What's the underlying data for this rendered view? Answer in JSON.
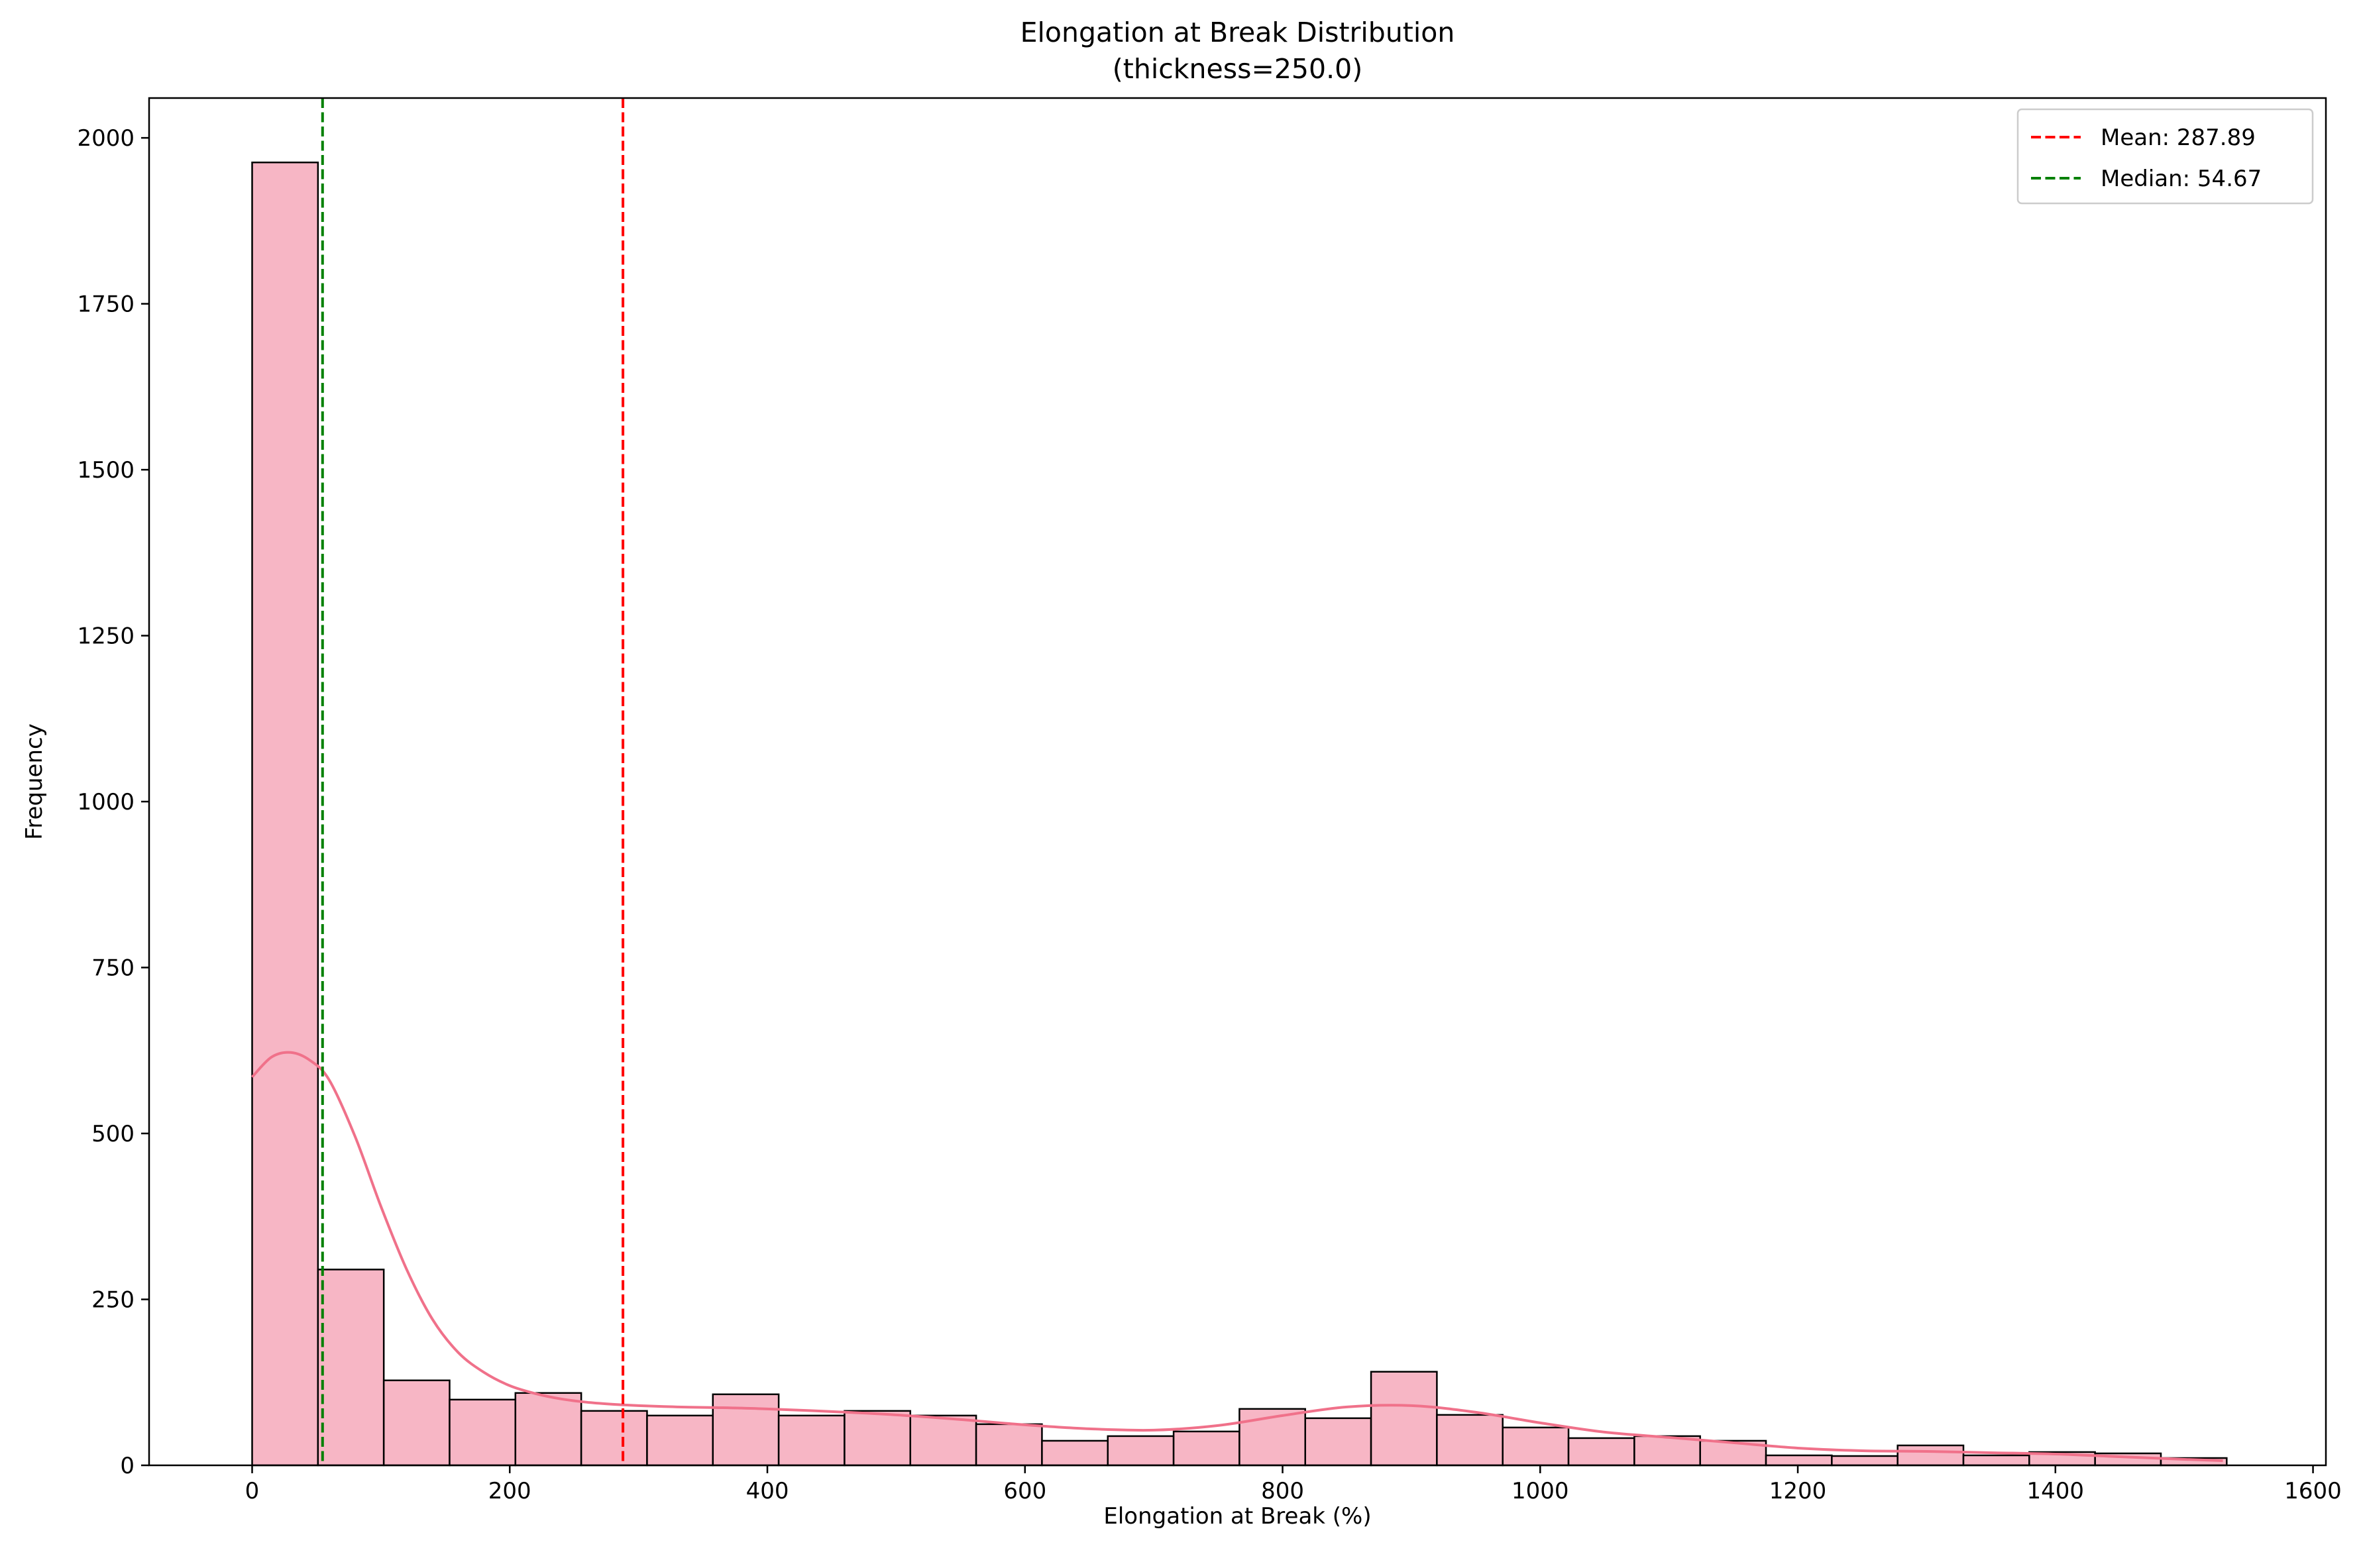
{
  "chart_data": {
    "type": "histogram",
    "title": "Elongation at Break Distribution",
    "subtitle": "(thickness=250.0)",
    "xlabel": "Elongation at Break (%)",
    "ylabel": "Frequency",
    "xlim": [
      -80,
      1610
    ],
    "ylim": [
      0,
      2060
    ],
    "xticks": [
      0,
      200,
      400,
      600,
      800,
      1000,
      1200,
      1400,
      1600
    ],
    "yticks": [
      0,
      250,
      500,
      750,
      1000,
      1250,
      1500,
      1750,
      2000
    ],
    "grid": false,
    "legend_position": "top-right",
    "bin_width": 51.1,
    "bins": [
      {
        "x0": 0.0,
        "count": 1963
      },
      {
        "x0": 51.1,
        "count": 295
      },
      {
        "x0": 102.2,
        "count": 128
      },
      {
        "x0": 153.3,
        "count": 99
      },
      {
        "x0": 204.4,
        "count": 109
      },
      {
        "x0": 255.5,
        "count": 82
      },
      {
        "x0": 306.6,
        "count": 75
      },
      {
        "x0": 357.7,
        "count": 107
      },
      {
        "x0": 408.8,
        "count": 75
      },
      {
        "x0": 459.9,
        "count": 82
      },
      {
        "x0": 511.0,
        "count": 75
      },
      {
        "x0": 562.1,
        "count": 62
      },
      {
        "x0": 613.2,
        "count": 37
      },
      {
        "x0": 664.3,
        "count": 44
      },
      {
        "x0": 715.4,
        "count": 51
      },
      {
        "x0": 766.5,
        "count": 85
      },
      {
        "x0": 817.6,
        "count": 71
      },
      {
        "x0": 868.7,
        "count": 141
      },
      {
        "x0": 919.8,
        "count": 76
      },
      {
        "x0": 970.9,
        "count": 57
      },
      {
        "x0": 1022.0,
        "count": 41
      },
      {
        "x0": 1073.1,
        "count": 44
      },
      {
        "x0": 1124.2,
        "count": 37
      },
      {
        "x0": 1175.3,
        "count": 15
      },
      {
        "x0": 1226.4,
        "count": 14
      },
      {
        "x0": 1277.5,
        "count": 30
      },
      {
        "x0": 1328.6,
        "count": 15
      },
      {
        "x0": 1379.7,
        "count": 20
      },
      {
        "x0": 1430.8,
        "count": 18
      },
      {
        "x0": 1481.9,
        "count": 11
      }
    ],
    "kde": {
      "x": [
        0,
        15,
        30,
        45,
        60,
        80,
        100,
        120,
        140,
        160,
        180,
        200,
        220,
        240,
        260,
        280,
        300,
        330,
        360,
        400,
        450,
        500,
        550,
        600,
        650,
        700,
        750,
        800,
        850,
        900,
        950,
        1000,
        1050,
        1100,
        1150,
        1200,
        1250,
        1300,
        1350,
        1400,
        1450,
        1500,
        1530
      ],
      "y": [
        585,
        615,
        622,
        610,
        580,
        495,
        390,
        295,
        220,
        170,
        140,
        120,
        108,
        100,
        95,
        92,
        90,
        88,
        87,
        85,
        81,
        76,
        69,
        61,
        55,
        53,
        60,
        75,
        88,
        90,
        80,
        64,
        50,
        42,
        34,
        26,
        22,
        21,
        19,
        17,
        13,
        9,
        7
      ]
    },
    "reference_lines": [
      {
        "label": "Mean: 287.89",
        "value": 287.89,
        "color": "#ff0000"
      },
      {
        "label": "Median: 54.67",
        "value": 54.67,
        "color": "#008000"
      }
    ],
    "colors": {
      "bar_fill": "#f7b6c5",
      "bar_edge": "#000000",
      "kde_line": "#f0718a"
    }
  }
}
